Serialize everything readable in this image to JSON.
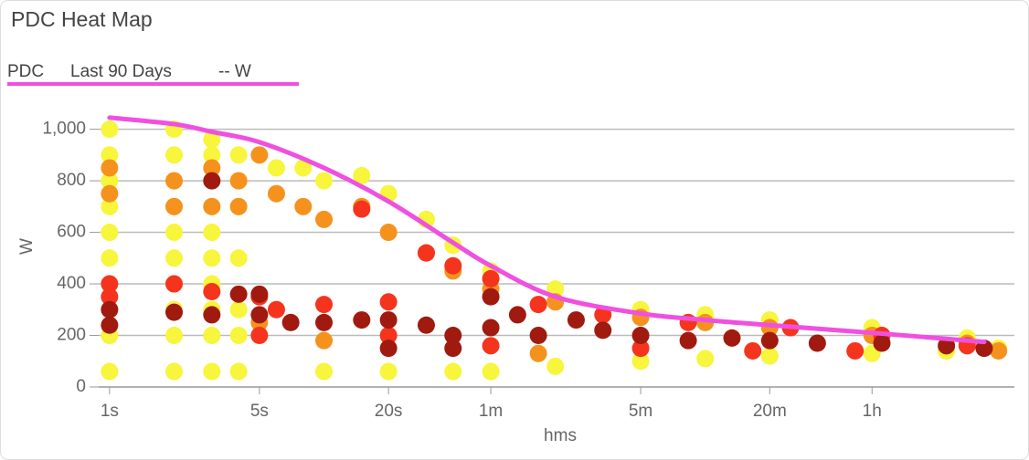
{
  "chart_data": {
    "type": "scatter",
    "title": "PDC Heat Map",
    "legend": {
      "name": "PDC",
      "period": "Last 90 Days",
      "value": "-- W",
      "color": "#f050e0"
    },
    "x_label": "hms",
    "y_label": "W",
    "xscale": "log",
    "xlim": [
      0.89,
      16600
    ],
    "ylim": [
      0,
      1080
    ],
    "xticks": [
      {
        "value": 1,
        "label": "1s"
      },
      {
        "value": 5,
        "label": "5s"
      },
      {
        "value": 20,
        "label": "20s"
      },
      {
        "value": 60,
        "label": "1m"
      },
      {
        "value": 300,
        "label": "5m"
      },
      {
        "value": 1200,
        "label": "20m"
      },
      {
        "value": 3600,
        "label": "1h"
      }
    ],
    "yticks": [
      0,
      200,
      400,
      600,
      800,
      {
        "value": 1000,
        "label": "1,000"
      }
    ],
    "grid": true,
    "series": [
      {
        "color": "#f7f53c",
        "x": [
          1,
          1,
          1,
          1,
          1,
          1,
          1,
          1,
          1,
          1,
          2,
          2,
          2,
          2,
          2,
          2,
          2,
          2,
          2,
          2,
          3,
          3,
          3,
          3,
          3,
          3,
          3,
          3,
          3,
          3,
          4,
          4,
          4,
          4,
          4,
          4,
          4,
          6,
          8,
          10,
          15,
          20,
          30,
          40,
          60,
          10,
          20,
          40,
          60,
          120,
          300,
          600,
          1200,
          3600,
          8000,
          14000,
          120,
          300,
          600,
          1200,
          3600,
          10000
        ],
        "values": [
          1000,
          900,
          800,
          700,
          600,
          500,
          400,
          300,
          200,
          60,
          1000,
          900,
          800,
          700,
          600,
          500,
          400,
          300,
          200,
          60,
          960,
          900,
          800,
          700,
          600,
          500,
          400,
          300,
          200,
          60,
          900,
          800,
          700,
          500,
          300,
          200,
          60,
          850,
          850,
          800,
          820,
          750,
          650,
          550,
          450,
          60,
          60,
          60,
          60,
          80,
          100,
          110,
          120,
          130,
          140,
          150,
          380,
          300,
          280,
          260,
          230,
          190
        ]
      },
      {
        "color": "#f5921e",
        "x": [
          1,
          1,
          2,
          2,
          3,
          3,
          4,
          4,
          5,
          6,
          8,
          10,
          15,
          20,
          30,
          40,
          60,
          120,
          300,
          600,
          1200,
          3600,
          10000,
          5,
          10,
          100,
          14000
        ],
        "values": [
          850,
          750,
          800,
          700,
          850,
          700,
          800,
          700,
          900,
          750,
          700,
          650,
          700,
          600,
          520,
          450,
          380,
          330,
          270,
          250,
          230,
          200,
          170,
          250,
          180,
          130,
          140
        ]
      },
      {
        "color": "#f5341e",
        "x": [
          1,
          1,
          2,
          3,
          5,
          6,
          10,
          15,
          20,
          30,
          40,
          60,
          100,
          200,
          500,
          1500,
          4000,
          10000,
          5,
          20,
          60,
          300,
          1000,
          3000
        ],
        "values": [
          400,
          350,
          400,
          370,
          350,
          300,
          320,
          690,
          330,
          520,
          470,
          420,
          320,
          280,
          250,
          230,
          200,
          160,
          200,
          200,
          160,
          150,
          140,
          140
        ]
      },
      {
        "color": "#a01a10",
        "x": [
          1,
          1,
          2,
          3,
          3,
          4,
          5,
          5,
          7,
          10,
          15,
          20,
          30,
          40,
          60,
          60,
          80,
          100,
          150,
          200,
          300,
          500,
          800,
          1200,
          2000,
          4000,
          8000,
          12000,
          20,
          40
        ],
        "values": [
          300,
          240,
          290,
          800,
          280,
          360,
          360,
          280,
          250,
          250,
          260,
          260,
          240,
          200,
          350,
          230,
          280,
          200,
          260,
          220,
          200,
          180,
          190,
          180,
          170,
          170,
          160,
          150,
          150,
          150
        ]
      },
      {
        "name": "PDC",
        "type": "line",
        "color": "#f050e0",
        "x": [
          1,
          2,
          3,
          5,
          10,
          20,
          40,
          60,
          120,
          300,
          600,
          1200,
          3600,
          12000
        ],
        "values": [
          1045,
          1020,
          990,
          950,
          850,
          720,
          560,
          470,
          350,
          285,
          260,
          240,
          210,
          175
        ]
      }
    ]
  }
}
